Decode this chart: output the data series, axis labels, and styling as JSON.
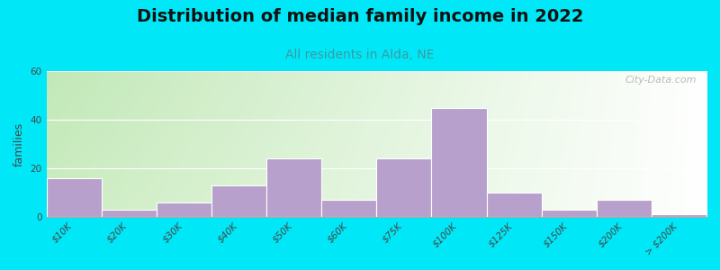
{
  "title": "Distribution of median family income in 2022",
  "subtitle": "All residents in Alda, NE",
  "ylabel": "families",
  "categories": [
    "$10K",
    "$20K",
    "$30K",
    "$40K",
    "$50K",
    "$60K",
    "$75K",
    "$100K",
    "$125K",
    "$150K",
    "$200K",
    "> $200K"
  ],
  "values": [
    16,
    3,
    6,
    13,
    24,
    7,
    24,
    45,
    10,
    3,
    7,
    1
  ],
  "bar_color": "#b8a0cc",
  "ylim": [
    0,
    60
  ],
  "yticks": [
    0,
    20,
    40,
    60
  ],
  "bg_outer": "#00e8f8",
  "bg_plot_left": "#c8e8c0",
  "bg_plot_right": "#f0f0f0",
  "watermark": "City-Data.com",
  "title_fontsize": 14,
  "subtitle_fontsize": 10,
  "ylabel_fontsize": 9,
  "tick_fontsize": 7.5
}
